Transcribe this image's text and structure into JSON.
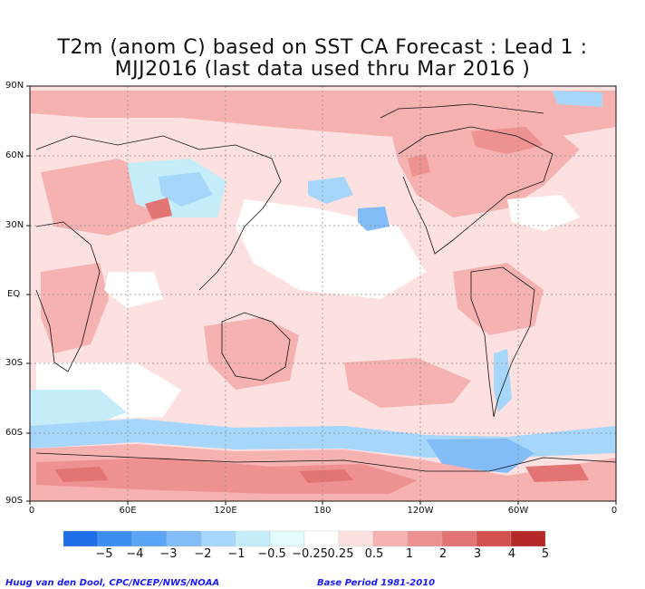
{
  "title": {
    "line1": "T2m (anom C) based on SST CA Forecast : Lead 1 :",
    "line2": "MJJ2016 (last data used thru Mar 2016 )"
  },
  "map": {
    "projection": "cylindrical equidistant",
    "lat_labels": [
      "90N",
      "60N",
      "30N",
      "EQ",
      "30S",
      "60S",
      "90S"
    ],
    "lon_labels": [
      "0",
      "60E",
      "120E",
      "180",
      "120W",
      "60W",
      "0"
    ],
    "grid": "dotted"
  },
  "colorbar": {
    "labels": [
      "−5",
      "−4",
      "−3",
      "−2",
      "−1",
      "−0.5",
      "−0.25",
      "0.25",
      "0.5",
      "1",
      "2",
      "3",
      "4",
      "5"
    ],
    "colors": [
      "#1e6fe8",
      "#3c8ef0",
      "#5aa5f5",
      "#82bdf8",
      "#a7d6fb",
      "#c5edf9",
      "#e2fbfb",
      "#ffffff",
      "#fde0e0",
      "#f6b1b1",
      "#ee9191",
      "#e37474",
      "#d44f4f",
      "#b62828"
    ]
  },
  "credits": {
    "left": "Huug van den Dool, CPC/NCEP/NWS/NOAA",
    "right": "Base Period 1981-2010"
  }
}
